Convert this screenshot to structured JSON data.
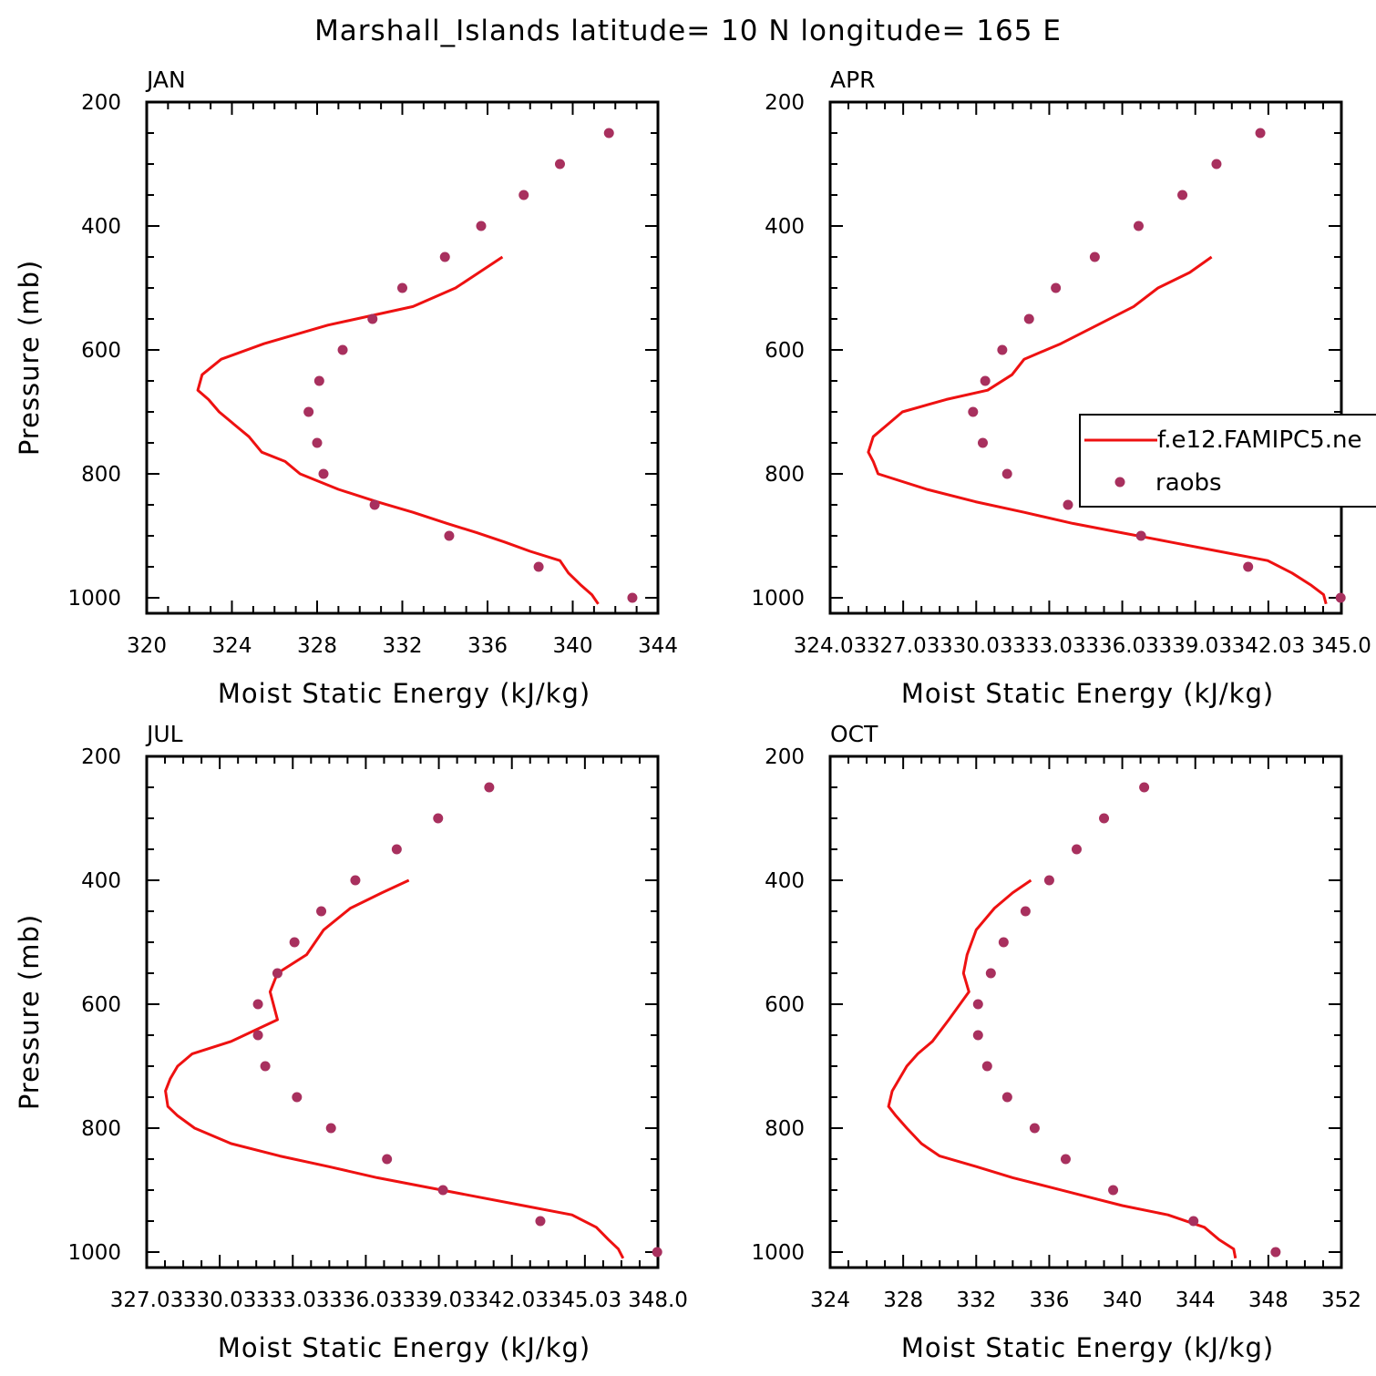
{
  "title": "Marshall_Islands   latitude= 10 N longitude= 165 E",
  "colors": {
    "model_line": "#ee1111",
    "obs_marker": "#a8305e",
    "frame": "#000000"
  },
  "chart_data": [
    {
      "type": "line",
      "title": "JAN",
      "xlabel": "Moist Static Energy (kJ/kg)",
      "ylabel": "Pressure (mb)",
      "xlim": [
        320,
        344
      ],
      "ylim": [
        200,
        1025
      ],
      "y_reversed": true,
      "xticks": [
        320,
        324,
        328,
        332,
        336,
        340,
        344
      ],
      "xtick_labels": [
        "320",
        "324",
        "328",
        "332",
        "336",
        "340",
        "344"
      ],
      "yticks": [
        200,
        400,
        600,
        800,
        1000
      ],
      "ytick_labels": [
        "200",
        "400",
        "600",
        "800",
        "1000"
      ],
      "series": [
        {
          "name": "f.e12.FAMIPC5.ne",
          "style": "line",
          "x": [
            341.2,
            340.9,
            340.4,
            339.8,
            339.4,
            338.0,
            336.8,
            335.5,
            334.1,
            332.5,
            330.8,
            329.0,
            327.2,
            326.5,
            325.4,
            324.8,
            324.1,
            323.4,
            322.9,
            322.4,
            322.6,
            323.5,
            325.5,
            328.5,
            332.5,
            334.5,
            335.6,
            336.7
          ],
          "y": [
            1010,
            995,
            980,
            960,
            940,
            925,
            910,
            895,
            880,
            862,
            845,
            825,
            800,
            780,
            765,
            740,
            720,
            700,
            680,
            665,
            640,
            615,
            590,
            560,
            530,
            500,
            475,
            450
          ]
        }
      ],
      "raobs": {
        "name": "raobs",
        "x": [
          341.7,
          339.4,
          337.7,
          335.7,
          334.0,
          332.0,
          330.6,
          329.2,
          328.1,
          327.6,
          328.0,
          328.3,
          330.7,
          334.2,
          338.4,
          342.8
        ],
        "y": [
          250,
          300,
          350,
          400,
          450,
          500,
          550,
          600,
          650,
          700,
          750,
          800,
          850,
          900,
          950,
          1000
        ]
      }
    },
    {
      "type": "line",
      "title": "APR",
      "xlabel": "Moist Static Energy (kJ/kg)",
      "ylabel": "",
      "xlim": [
        324.03,
        345.03
      ],
      "ylim": [
        200,
        1025
      ],
      "y_reversed": true,
      "xticks": [
        324.03,
        327.03,
        330.03,
        333.03,
        336.03,
        339.03,
        342.03,
        345.03
      ],
      "xtick_labels": [
        "324.03",
        "327.03",
        "330.03",
        "333.03",
        "336.03",
        "339.03",
        "342.03",
        "345.0"
      ],
      "yticks": [
        200,
        400,
        600,
        800,
        1000
      ],
      "ytick_labels": [
        "200",
        "400",
        "600",
        "800",
        "1000"
      ],
      "series": [
        {
          "name": "f.e12.FAMIPC5.ne",
          "style": "line",
          "x": [
            344.4,
            344.3,
            343.8,
            343.0,
            342.0,
            340.0,
            338.0,
            336.0,
            334.0,
            332.0,
            330.0,
            328.0,
            326.0,
            325.8,
            325.6,
            325.8,
            326.4,
            327.0,
            328.8,
            330.5,
            331.5,
            332.0,
            333.5,
            335.0,
            336.5,
            337.5,
            338.8,
            339.7
          ],
          "y": [
            1010,
            995,
            980,
            960,
            940,
            925,
            910,
            895,
            880,
            862,
            845,
            825,
            800,
            780,
            765,
            740,
            720,
            700,
            680,
            665,
            640,
            615,
            590,
            560,
            530,
            500,
            475,
            450
          ]
        }
      ],
      "raobs": {
        "name": "raobs",
        "x": [
          341.7,
          339.9,
          338.5,
          336.7,
          334.9,
          333.3,
          332.2,
          331.1,
          330.4,
          329.9,
          330.3,
          331.3,
          333.8,
          336.8,
          341.2,
          345.0
        ],
        "y": [
          250,
          300,
          350,
          400,
          450,
          500,
          550,
          600,
          650,
          700,
          750,
          800,
          850,
          900,
          950,
          1000
        ]
      }
    },
    {
      "type": "line",
      "title": "JUL",
      "xlabel": "Moist Static Energy (kJ/kg)",
      "ylabel": "Pressure (mb)",
      "xlim": [
        327.03,
        348.03
      ],
      "ylim": [
        200,
        1025
      ],
      "y_reversed": true,
      "xticks": [
        327.03,
        330.03,
        333.03,
        336.03,
        339.03,
        342.03,
        345.03,
        348.03
      ],
      "xtick_labels": [
        "327.03",
        "330.03",
        "333.03",
        "336.03",
        "339.03",
        "342.03",
        "345.03",
        "348.0"
      ],
      "yticks": [
        200,
        400,
        600,
        800,
        1000
      ],
      "ytick_labels": [
        "200",
        "400",
        "600",
        "800",
        "1000"
      ],
      "series": [
        {
          "name": "f.e12.FAMIPC5.ne",
          "style": "line",
          "x": [
            346.6,
            346.4,
            346.0,
            345.5,
            344.5,
            342.5,
            340.5,
            338.5,
            336.5,
            334.5,
            332.5,
            330.5,
            329.0,
            328.3,
            327.9,
            327.8,
            328.0,
            328.3,
            328.9,
            330.5,
            332.4,
            332.1,
            332.4,
            333.6,
            334.3,
            335.4,
            336.7,
            337.8
          ],
          "y": [
            1010,
            995,
            980,
            960,
            940,
            925,
            910,
            895,
            880,
            862,
            845,
            825,
            800,
            780,
            765,
            740,
            720,
            700,
            680,
            660,
            625,
            580,
            550,
            520,
            480,
            445,
            420,
            400
          ]
        }
      ],
      "raobs": {
        "name": "raobs",
        "x": [
          341.1,
          339.0,
          337.3,
          335.6,
          334.2,
          333.1,
          332.4,
          331.6,
          331.6,
          331.9,
          333.2,
          334.6,
          336.9,
          339.2,
          343.2,
          348.0
        ],
        "y": [
          250,
          300,
          350,
          400,
          450,
          500,
          550,
          600,
          650,
          700,
          750,
          800,
          850,
          900,
          950,
          1000
        ]
      }
    },
    {
      "type": "line",
      "title": "OCT",
      "xlabel": "Moist Static Energy (kJ/kg)",
      "ylabel": "",
      "xlim": [
        324,
        352
      ],
      "ylim": [
        200,
        1025
      ],
      "y_reversed": true,
      "xticks": [
        324,
        328,
        332,
        336,
        340,
        344,
        348,
        352
      ],
      "xtick_labels": [
        "324",
        "328",
        "332",
        "336",
        "340",
        "344",
        "348",
        "352"
      ],
      "yticks": [
        200,
        400,
        600,
        800,
        1000
      ],
      "ytick_labels": [
        "200",
        "400",
        "600",
        "800",
        "1000"
      ],
      "series": [
        {
          "name": "f.e12.FAMIPC5.ne",
          "style": "line",
          "x": [
            346.2,
            346.1,
            345.3,
            344.5,
            342.5,
            340.0,
            338.0,
            336.0,
            334.0,
            332.0,
            330.0,
            329.0,
            328.2,
            327.6,
            327.2,
            327.4,
            327.8,
            328.2,
            328.8,
            329.6,
            330.5,
            331.6,
            331.3,
            331.5,
            332.0,
            333.0,
            334.0,
            335.0
          ],
          "y": [
            1010,
            995,
            980,
            960,
            940,
            925,
            910,
            895,
            880,
            862,
            845,
            825,
            800,
            780,
            765,
            740,
            720,
            700,
            680,
            660,
            625,
            580,
            550,
            520,
            480,
            445,
            420,
            400
          ]
        }
      ],
      "raobs": {
        "name": "raobs",
        "x": [
          341.2,
          339.0,
          337.5,
          336.0,
          334.7,
          333.5,
          332.8,
          332.1,
          332.1,
          332.6,
          333.7,
          335.2,
          336.9,
          339.5,
          343.9,
          348.4
        ],
        "y": [
          250,
          300,
          350,
          400,
          450,
          500,
          550,
          600,
          650,
          700,
          750,
          800,
          850,
          900,
          950,
          1000
        ]
      }
    }
  ],
  "legend": {
    "entries": [
      "f.e12.FAMIPC5.ne",
      "raobs"
    ],
    "placement": "right-middle"
  }
}
